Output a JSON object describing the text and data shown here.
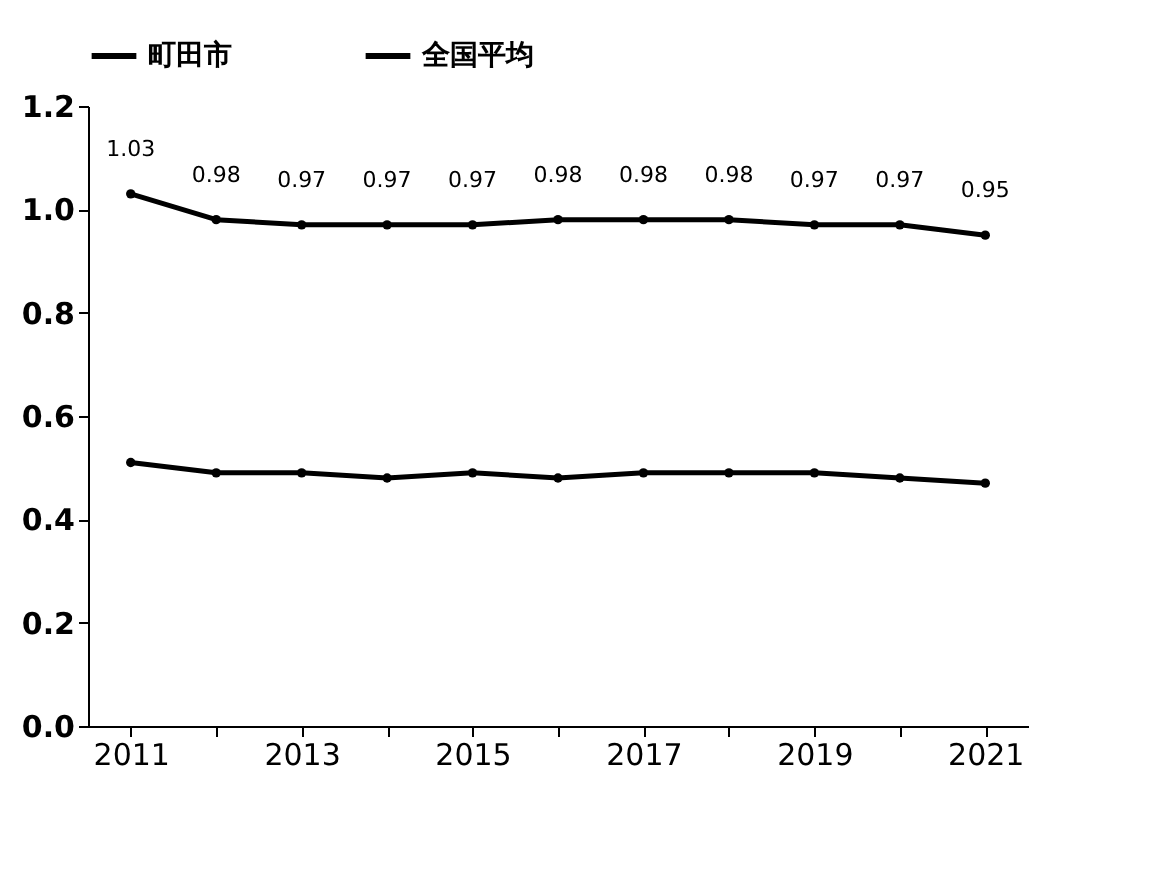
{
  "chart_data": {
    "type": "line",
    "categories": [
      "2011",
      null,
      "2013",
      null,
      "2015",
      null,
      "2017",
      null,
      "2019",
      null,
      "2021"
    ],
    "series": [
      {
        "name": "町田市",
        "color": "#000000",
        "values": [
          1.03,
          0.98,
          0.97,
          0.97,
          0.97,
          0.98,
          0.98,
          0.98,
          0.97,
          0.97,
          0.95
        ],
        "value_labels": [
          "1.03",
          "0.98",
          "0.97",
          "0.97",
          "0.97",
          "0.98",
          "0.98",
          "0.98",
          "0.97",
          "0.97",
          "0.95"
        ]
      },
      {
        "name": "全国平均",
        "color": "#000000",
        "values": [
          0.51,
          0.49,
          0.49,
          0.48,
          0.49,
          0.48,
          0.49,
          0.49,
          0.49,
          0.48,
          0.47
        ]
      }
    ],
    "ylim": [
      0,
      1.2
    ],
    "yticks": [
      {
        "value": 0,
        "label": "0.0"
      },
      0.2,
      0.4,
      0.6,
      0.8,
      {
        "value": 1,
        "label": "1.0"
      },
      1.2
    ],
    "grid": false,
    "legend": "top",
    "marker": "circle",
    "line_style": "solid"
  }
}
